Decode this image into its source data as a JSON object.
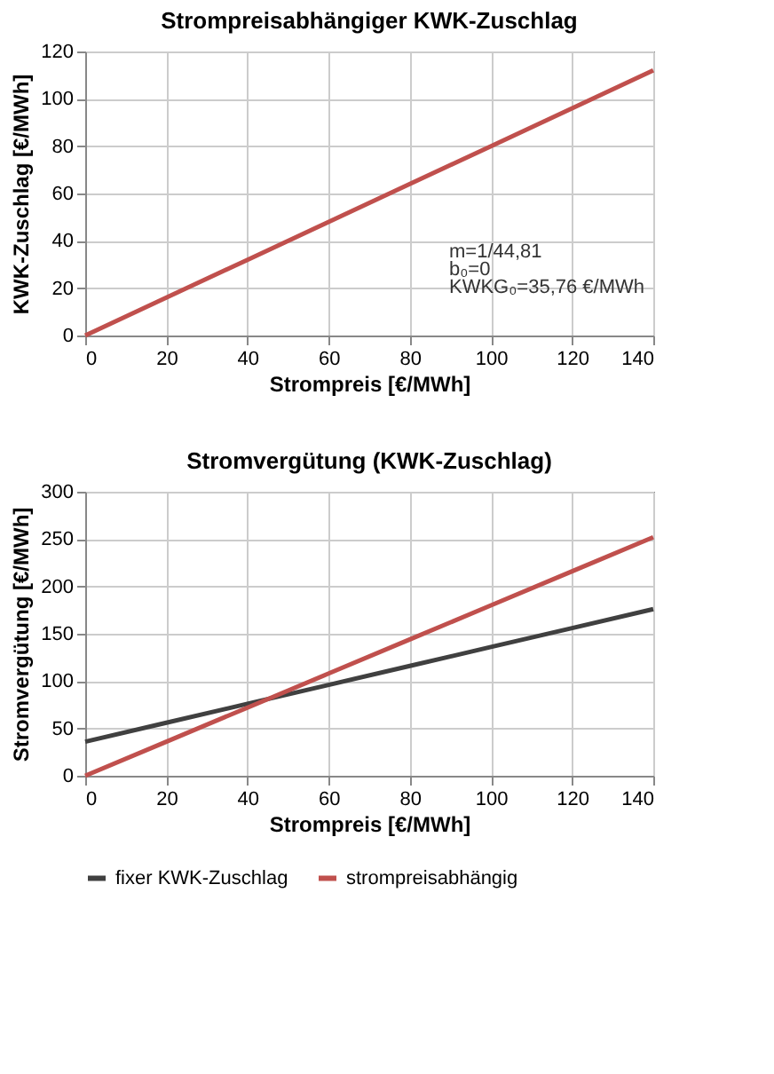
{
  "chart_data": [
    {
      "type": "line",
      "title": "Strompreisabhängiger KWK-Zuschlag",
      "xlabel": "Strompreis [€/MWh]",
      "ylabel": "KWK-Zuschlag [€/MWh]",
      "x": [
        0,
        20,
        40,
        60,
        80,
        100,
        120,
        140
      ],
      "series": [
        {
          "color": "#c0504d",
          "values": [
            0,
            16,
            32,
            48,
            64,
            80,
            96,
            112
          ]
        }
      ],
      "xlim": [
        0,
        140
      ],
      "xticks": [
        0,
        20,
        40,
        60,
        80,
        100,
        120,
        140
      ],
      "ylim": [
        0,
        120
      ],
      "yticks": [
        0,
        20,
        40,
        60,
        80,
        100,
        120
      ],
      "grid": true,
      "legend": false,
      "annotations": [
        "m=1/44,81",
        "b₀=0",
        "KWKG₀=35,76 €/MWh"
      ]
    },
    {
      "type": "line",
      "title": "Stromvergütung (KWK-Zuschlag)",
      "xlabel": "Strompreis [€/MWh]",
      "ylabel": "Stromvergütung [€/MWh]",
      "x": [
        0,
        20,
        40,
        60,
        80,
        100,
        120,
        140
      ],
      "series": [
        {
          "name": "fixer KWK-Zuschlag",
          "color": "#404040",
          "values": [
            36,
            56,
            76,
            96,
            116,
            136,
            156,
            176
          ]
        },
        {
          "name": "strompreisabhängig",
          "color": "#c0504d",
          "values": [
            0,
            36,
            72,
            108,
            144,
            180,
            216,
            252
          ]
        }
      ],
      "xlim": [
        0,
        140
      ],
      "xticks": [
        0,
        20,
        40,
        60,
        80,
        100,
        120,
        140
      ],
      "ylim": [
        0,
        300
      ],
      "yticks": [
        0,
        50,
        100,
        150,
        200,
        250,
        300
      ],
      "grid": true,
      "legend": "bottom"
    }
  ]
}
